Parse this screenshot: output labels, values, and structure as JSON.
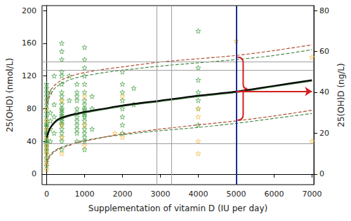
{
  "chart_data": {
    "type": "scatter",
    "xlabel": "Supplementation of vitamin D (IU per day)",
    "ylabel": "25(OHD) (nmol/L)",
    "y2label": "25(OH)D (ng/L)",
    "xlim": [
      -120,
      7050
    ],
    "xticks": [
      0,
      1000,
      2000,
      3000,
      4000,
      5000,
      6000,
      7000
    ],
    "ylim": [
      -13,
      206
    ],
    "yticks": [
      0,
      40,
      80,
      120,
      160,
      200
    ],
    "y2lim": [
      -5.2,
      82.4
    ],
    "y2ticks": [
      0,
      20,
      40,
      60,
      80
    ],
    "grid": false,
    "series": [
      {
        "type": "scatter",
        "marker": "star",
        "color": "#3c9b3c",
        "x": [
          0,
          0,
          0,
          0,
          0,
          0,
          0,
          0,
          0,
          0,
          0,
          0,
          0,
          0,
          0,
          0,
          0,
          0,
          0,
          0,
          0,
          0,
          0,
          0,
          0,
          0,
          0,
          0,
          0,
          100,
          100,
          100,
          100,
          100,
          200,
          200,
          200,
          200,
          400,
          400,
          400,
          400,
          400,
          400,
          400,
          400,
          400,
          400,
          400,
          400,
          400,
          400,
          400,
          400,
          400,
          400,
          400,
          400,
          400,
          400,
          400,
          400,
          600,
          600,
          800,
          800,
          800,
          800,
          800,
          800,
          800,
          800,
          800,
          800,
          800,
          800,
          1000,
          1000,
          1000,
          1000,
          1000,
          1000,
          1000,
          1000,
          1000,
          1000,
          1000,
          1000,
          1000,
          1000,
          1000,
          1000,
          1000,
          1000,
          1000,
          1000,
          1200,
          1200,
          1200,
          2000,
          2000,
          2000,
          2000,
          2000,
          2000,
          2000,
          2000,
          2300,
          2300,
          4000,
          4000,
          4000,
          4000,
          4000,
          4000,
          4000
        ],
        "values": [
          10,
          15,
          20,
          25,
          28,
          30,
          33,
          35,
          38,
          40,
          42,
          45,
          48,
          50,
          52,
          55,
          58,
          60,
          62,
          65,
          70,
          75,
          80,
          85,
          90,
          95,
          100,
          105,
          110,
          40,
          55,
          65,
          75,
          100,
          50,
          70,
          85,
          120,
          30,
          40,
          45,
          50,
          55,
          60,
          62,
          65,
          68,
          70,
          72,
          75,
          78,
          80,
          85,
          90,
          95,
          100,
          110,
          120,
          125,
          140,
          150,
          160,
          90,
          120,
          40,
          50,
          55,
          60,
          65,
          70,
          75,
          80,
          90,
          95,
          100,
          110,
          30,
          40,
          45,
          50,
          55,
          60,
          65,
          70,
          72,
          75,
          78,
          80,
          85,
          90,
          100,
          110,
          120,
          130,
          140,
          155,
          55,
          80,
          95,
          50,
          60,
          70,
          80,
          90,
          100,
          110,
          125,
          85,
          105,
          60,
          80,
          90,
          100,
          115,
          130,
          175
        ]
      },
      {
        "type": "scatter",
        "marker": "star",
        "color": "#f2b840",
        "x": [
          0,
          0,
          0,
          0,
          0,
          0,
          0,
          0,
          0,
          0,
          400,
          400,
          400,
          400,
          1000,
          1000,
          1000,
          1800,
          2000,
          2000,
          4000,
          4000,
          4000,
          4000,
          5000,
          7000,
          7000
        ],
        "values": [
          5,
          12,
          18,
          25,
          30,
          35,
          45,
          55,
          65,
          80,
          25,
          45,
          60,
          90,
          35,
          60,
          95,
          50,
          45,
          95,
          25,
          40,
          70,
          80,
          163,
          40,
          143
        ]
      },
      {
        "type": "line",
        "line_style": "solid",
        "color": "#2f5f2f",
        "x": [
          0,
          50,
          100,
          200,
          300,
          400,
          600,
          800,
          1000,
          1500,
          2000,
          3000,
          4000,
          5000,
          6000,
          7000
        ],
        "values": [
          43,
          50,
          56,
          62,
          66,
          68,
          71,
          73,
          75,
          79,
          83,
          89,
          95,
          100,
          107,
          114
        ]
      },
      {
        "type": "line",
        "line_style": "solid",
        "color": "#000000",
        "x": [
          0,
          50,
          100,
          200,
          300,
          400,
          600,
          800,
          1000,
          1500,
          2000,
          3000,
          4000,
          5000,
          6000,
          7000
        ],
        "values": [
          45,
          52,
          57,
          63,
          67,
          69,
          72,
          74,
          76,
          80,
          84,
          90,
          96,
          101,
          108,
          115
        ]
      },
      {
        "type": "line",
        "line_style": "dashed",
        "color": "#4a8a4a",
        "x": [
          0,
          50,
          100,
          200,
          300,
          400,
          600,
          800,
          1000,
          1500,
          2000,
          3000,
          4000,
          5000,
          6000,
          7000
        ],
        "values": [
          80,
          90,
          97,
          104,
          108,
          111,
          115,
          118,
          120,
          124,
          127,
          132,
          136,
          140,
          145,
          152
        ]
      },
      {
        "type": "line",
        "line_style": "dashed",
        "color": "#b05030",
        "x": [
          0,
          50,
          100,
          200,
          300,
          400,
          600,
          800,
          1000,
          1500,
          2000,
          3000,
          4000,
          5000,
          6000,
          7000
        ],
        "values": [
          85,
          95,
          102,
          108,
          112,
          115,
          119,
          122,
          124,
          128,
          131,
          137,
          141,
          145,
          151,
          158
        ]
      },
      {
        "type": "line",
        "line_style": "dashed",
        "color": "#4a8a4a",
        "x": [
          0,
          50,
          100,
          200,
          300,
          400,
          600,
          800,
          1000,
          1500,
          2000,
          3000,
          4000,
          5000,
          6000,
          7000
        ],
        "values": [
          15,
          20,
          24,
          28,
          31,
          33,
          36,
          39,
          41,
          45,
          48,
          53,
          57,
          62,
          68,
          74
        ]
      },
      {
        "type": "line",
        "line_style": "dashed",
        "color": "#b05030",
        "x": [
          0,
          50,
          100,
          200,
          300,
          400,
          600,
          800,
          1000,
          1500,
          2000,
          3000,
          4000,
          5000,
          6000,
          7000
        ],
        "values": [
          12,
          18,
          22,
          27,
          30,
          32,
          35,
          38,
          40,
          45,
          49,
          55,
          60,
          65,
          71,
          78
        ]
      }
    ],
    "reference_lines": {
      "horizontal": [
        37,
        127,
        137
      ],
      "vertical": [
        2900,
        3300
      ],
      "color": "#a0a0a0"
    },
    "highlight_line": {
      "x": 5000,
      "color": "#1c2f8c"
    },
    "bracket": {
      "x": 5000,
      "y": [
        143,
        66
      ],
      "color": "#d42020"
    },
    "arrow": {
      "x": [
        5000,
        7000
      ],
      "y": 101,
      "color": "#d42020"
    }
  }
}
